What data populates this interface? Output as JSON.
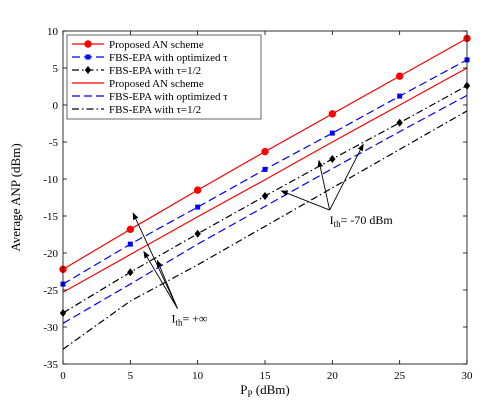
{
  "chart_data": {
    "type": "line",
    "title": "",
    "xlabel": "P",
    "xlabel_sub": "P",
    "xlabel_unit": "(dBm)",
    "ylabel": "Average ANP (dBm)",
    "xlim": [
      0,
      30
    ],
    "ylim": [
      -35,
      10
    ],
    "xticks": [
      0,
      5,
      10,
      15,
      20,
      25,
      30
    ],
    "yticks": [
      -35,
      -30,
      -25,
      -20,
      -15,
      -10,
      -5,
      0,
      5,
      10
    ],
    "grid": false,
    "legend_position": "top-left",
    "x": [
      0,
      5,
      10,
      15,
      20,
      25,
      30
    ],
    "series": [
      {
        "name": "Proposed AN scheme",
        "color": "#ff0000",
        "dash": "solid",
        "marker": "circle",
        "values": [
          -22.2,
          -16.8,
          -11.5,
          -6.3,
          -1.2,
          3.9,
          9.0
        ]
      },
      {
        "name": "FBS-EPA with optimized τ",
        "color": "#0000ff",
        "dash": "dashed",
        "marker": "square",
        "values": [
          -24.2,
          -18.8,
          -13.8,
          -8.7,
          -3.8,
          1.2,
          6.1
        ]
      },
      {
        "name": "FBS-EPA with τ=1/2",
        "color": "#000000",
        "dash": "dashdot",
        "marker": "diamond",
        "values": [
          -28.1,
          -22.6,
          -17.4,
          -12.3,
          -7.3,
          -2.4,
          2.6
        ]
      },
      {
        "name": "Proposed AN scheme",
        "color": "#ff0000",
        "dash": "solid",
        "marker": "none",
        "values": [
          -25.3,
          -20.2,
          -15.1,
          -10.1,
          -5.0,
          0.0,
          5.0
        ]
      },
      {
        "name": "FBS-EPA with optimized τ",
        "color": "#0000ff",
        "dash": "dashed",
        "marker": "none",
        "values": [
          -29.5,
          -24.2,
          -18.8,
          -13.7,
          -8.6,
          -3.6,
          1.3
        ]
      },
      {
        "name": "FBS-EPA with τ=1/2",
        "color": "#000000",
        "dash": "dashdot",
        "marker": "none",
        "values": [
          -33.0,
          -26.5,
          -21.6,
          -16.4,
          -11.2,
          -6.0,
          -0.8
        ]
      }
    ],
    "annotations": [
      {
        "id": "inf",
        "text_main": "I",
        "text_sub": "th",
        "text_rest": "= +∞",
        "point": [
          8.5,
          -27.5
        ],
        "targets": [
          [
            5.2,
            -14.6
          ],
          [
            6.0,
            -19.8
          ],
          [
            7.0,
            -21.0
          ]
        ]
      },
      {
        "id": "m70",
        "text_main": "I",
        "text_sub": "th",
        "text_rest": "= -70 dBm",
        "point": [
          19.8,
          -14.2
        ],
        "targets": [
          [
            22.3,
            -5.3
          ],
          [
            19.0,
            -7.5
          ],
          [
            16.2,
            -11.6
          ]
        ]
      }
    ]
  }
}
